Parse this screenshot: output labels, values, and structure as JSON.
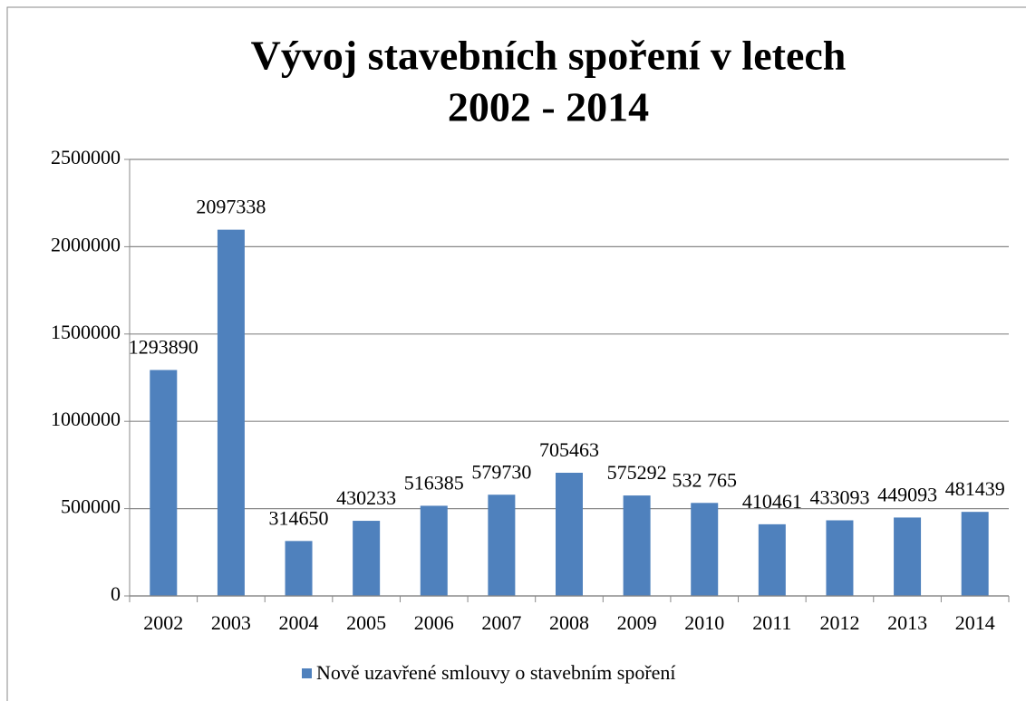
{
  "chart_data": {
    "type": "bar",
    "title": [
      "Vývoj stavebních spoření v letech",
      "2002 - 2014"
    ],
    "categories": [
      "2002",
      "2003",
      "2004",
      "2005",
      "2006",
      "2007",
      "2008",
      "2009",
      "2010",
      "2011",
      "2012",
      "2013",
      "2014"
    ],
    "series": [
      {
        "name": "Nově uzavřené smlouvy o stavebním spoření",
        "color": "#4f81bd",
        "values": [
          1293890,
          2097338,
          314650,
          430233,
          516385,
          579730,
          705463,
          575292,
          532765,
          410461,
          433093,
          449093,
          481439
        ],
        "value_labels": [
          "1293890",
          "2097338",
          "314650",
          "430233",
          "516385",
          "579730",
          "705463",
          "575292",
          "532 765",
          "410461",
          "433093",
          "449093",
          "481439"
        ]
      }
    ],
    "ylim": [
      0,
      2500000
    ],
    "yticks": [
      0,
      500000,
      1000000,
      1500000,
      2000000,
      2500000
    ],
    "grid": true
  }
}
